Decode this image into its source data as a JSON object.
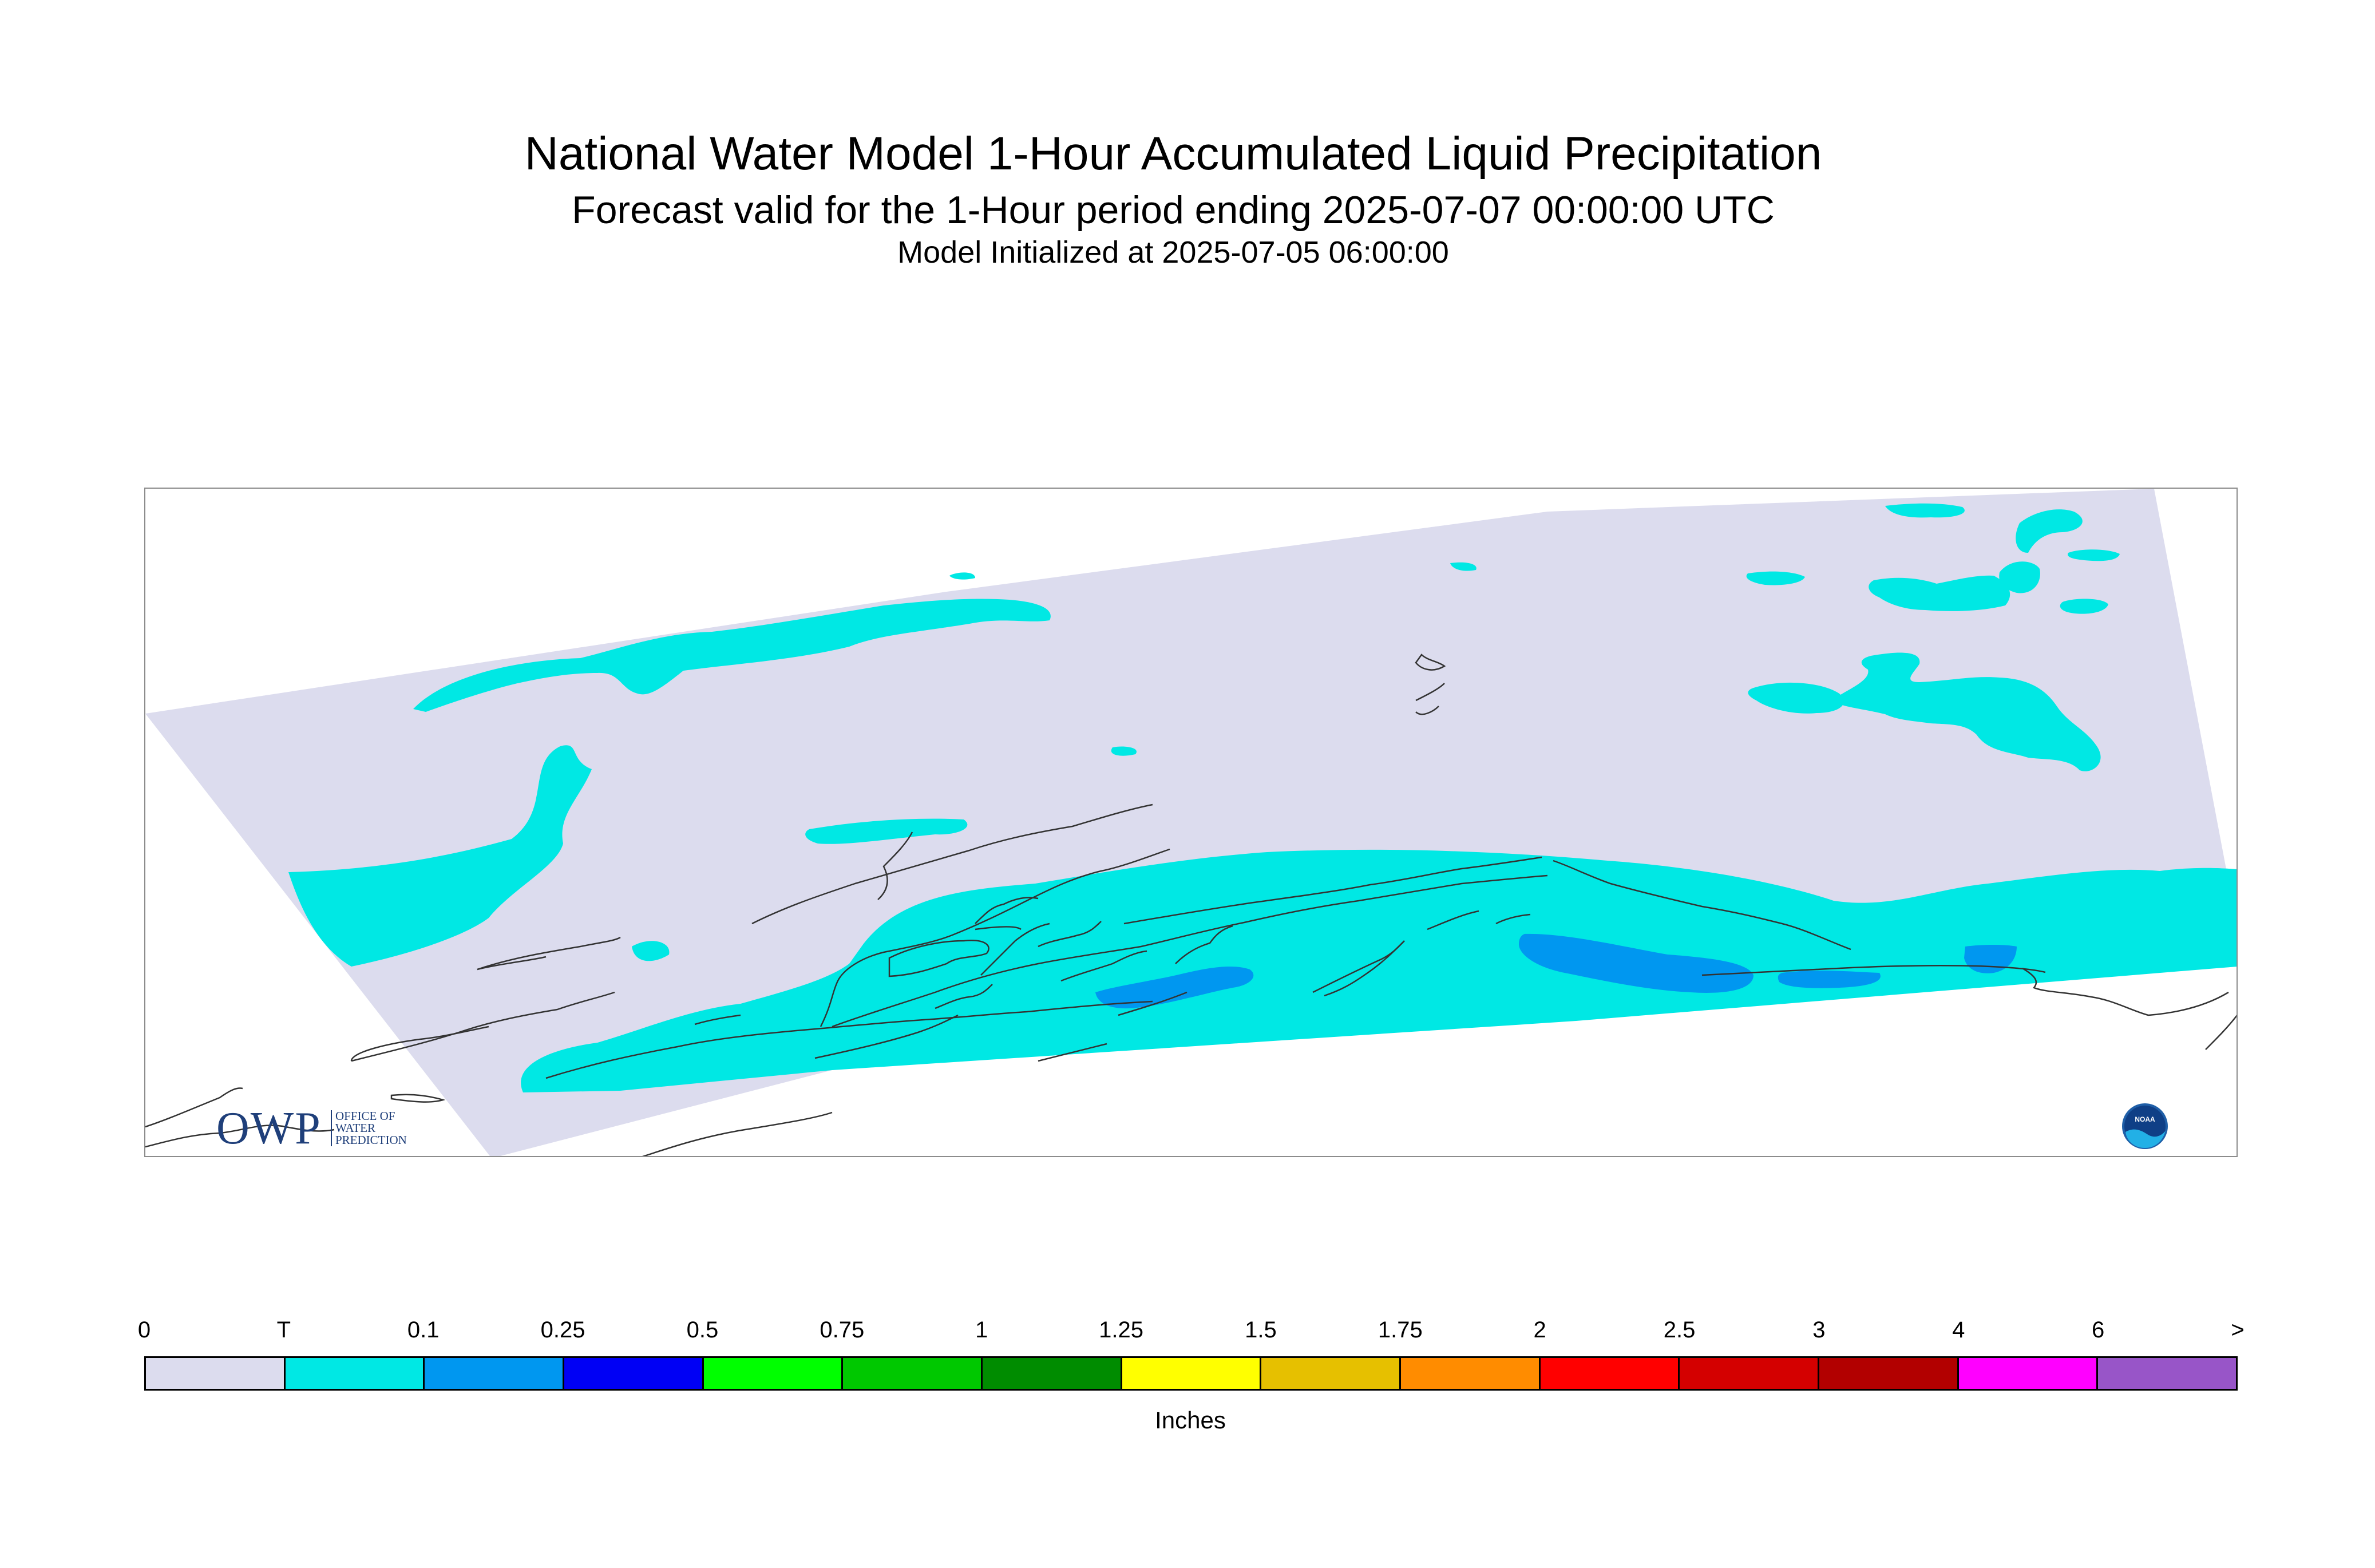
{
  "header": {
    "title": "National Water Model 1-Hour Accumulated Liquid Precipitation",
    "subtitle": "Forecast valid for the 1-Hour period ending 2025-07-07 00:00:00 UTC",
    "initialized": "Model Initialized at 2025-07-05 06:00:00"
  },
  "map": {
    "domain_fill_color": "#dcdcee",
    "coast_color": "#333333",
    "logo_owp": {
      "mark": "OWP",
      "subtext_line1": "OFFICE OF",
      "subtext_line2": "WATER",
      "subtext_line3": "PREDICTION"
    },
    "logo_noaa": {
      "text": "NOAA"
    }
  },
  "legend": {
    "tick_labels": [
      "0",
      "T",
      "0.1",
      "0.25",
      "0.5",
      "0.75",
      "1",
      "1.25",
      "1.5",
      "1.75",
      "2",
      "2.5",
      "3",
      "4",
      "6",
      ">"
    ],
    "colors": [
      "#dcdcee",
      "#00e8e4",
      "#0097f0",
      "#0000f5",
      "#00ff00",
      "#00c800",
      "#008c00",
      "#ffff00",
      "#e6c000",
      "#ff8c00",
      "#ff0000",
      "#d40000",
      "#b20000",
      "#ff00ff",
      "#9855c8"
    ],
    "units": "Inches"
  }
}
